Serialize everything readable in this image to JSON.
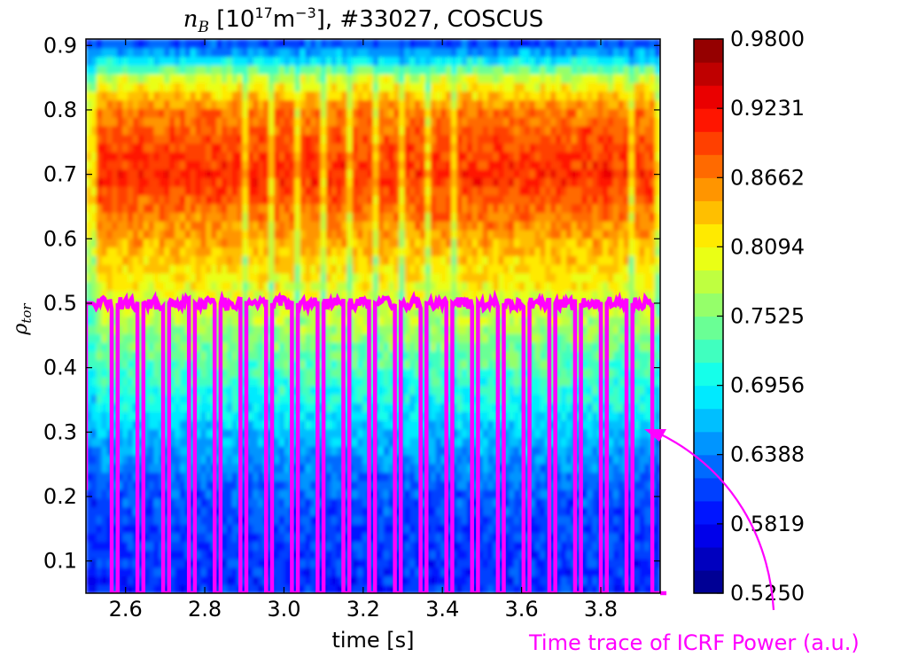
{
  "chart_data": {
    "type": "heatmap",
    "title": "n_B [10^17 m^-3], #33027, COSCUS",
    "title_parts": {
      "symbol_main": "n",
      "symbol_sub": "B",
      "bracket_open": " [10",
      "exp1": "17",
      "unit": "m",
      "exp2": "−3",
      "bracket_close": "], #33027, COSCUS"
    },
    "xlabel": "time [s]",
    "ylabel_main": "ρ",
    "ylabel_sub": "tor",
    "xlim": [
      2.5,
      3.95
    ],
    "ylim": [
      0.05,
      0.91
    ],
    "x_ticks": [
      "2.6",
      "2.8",
      "3.0",
      "3.2",
      "3.4",
      "3.6",
      "3.8"
    ],
    "x_tick_values": [
      2.6,
      2.8,
      3.0,
      3.2,
      3.4,
      3.6,
      3.8
    ],
    "y_ticks": [
      "0.1",
      "0.2",
      "0.3",
      "0.4",
      "0.5",
      "0.6",
      "0.7",
      "0.8",
      "0.9"
    ],
    "y_tick_values": [
      0.1,
      0.2,
      0.3,
      0.4,
      0.5,
      0.6,
      0.7,
      0.8,
      0.9
    ],
    "colorbar": {
      "min": 0.525,
      "max": 0.98,
      "tick_labels": [
        "0.9800",
        "0.9231",
        "0.8662",
        "0.8094",
        "0.7525",
        "0.6956",
        "0.6388",
        "0.5819",
        "0.5250"
      ],
      "tick_values": [
        0.98,
        0.9231,
        0.8662,
        0.8094,
        0.7525,
        0.6956,
        0.6388,
        0.5819,
        0.525
      ],
      "colormap": "jet",
      "levels": 24
    },
    "profile": {
      "rho": [
        0.06,
        0.1,
        0.15,
        0.2,
        0.25,
        0.3,
        0.35,
        0.4,
        0.45,
        0.5,
        0.55,
        0.6,
        0.65,
        0.7,
        0.75,
        0.8,
        0.85,
        0.88,
        0.91
      ],
      "density_on": [
        0.6,
        0.605,
        0.61,
        0.62,
        0.64,
        0.67,
        0.7,
        0.73,
        0.76,
        0.79,
        0.82,
        0.85,
        0.88,
        0.91,
        0.89,
        0.87,
        0.79,
        0.68,
        0.6
      ],
      "density_off": [
        0.59,
        0.595,
        0.6,
        0.6,
        0.62,
        0.65,
        0.68,
        0.7,
        0.72,
        0.74,
        0.76,
        0.79,
        0.81,
        0.83,
        0.82,
        0.8,
        0.74,
        0.66,
        0.6
      ]
    },
    "icrf_trace": {
      "name": "Time trace of ICRF Power (a.u.)",
      "color": "#ff00ff",
      "low_level": 0.05,
      "high_level": 0.5,
      "pulses_on": [
        [
          2.515,
          2.565
        ],
        [
          2.58,
          2.63
        ],
        [
          2.645,
          2.695
        ],
        [
          2.71,
          2.76
        ],
        [
          2.775,
          2.825
        ],
        [
          2.84,
          2.89
        ],
        [
          2.905,
          2.955
        ],
        [
          2.97,
          3.02
        ],
        [
          3.035,
          3.085
        ],
        [
          3.1,
          3.15
        ],
        [
          3.165,
          3.215
        ],
        [
          3.23,
          3.28
        ],
        [
          3.295,
          3.345
        ],
        [
          3.36,
          3.41
        ],
        [
          3.425,
          3.475
        ],
        [
          3.49,
          3.54
        ],
        [
          3.555,
          3.605
        ],
        [
          3.62,
          3.67
        ],
        [
          3.685,
          3.735
        ],
        [
          3.75,
          3.8
        ],
        [
          3.815,
          3.865
        ],
        [
          3.88,
          3.93
        ]
      ]
    }
  },
  "annotation": {
    "label": "Time trace of ICRF Power (a.u.)",
    "color": "#ff00ff"
  }
}
